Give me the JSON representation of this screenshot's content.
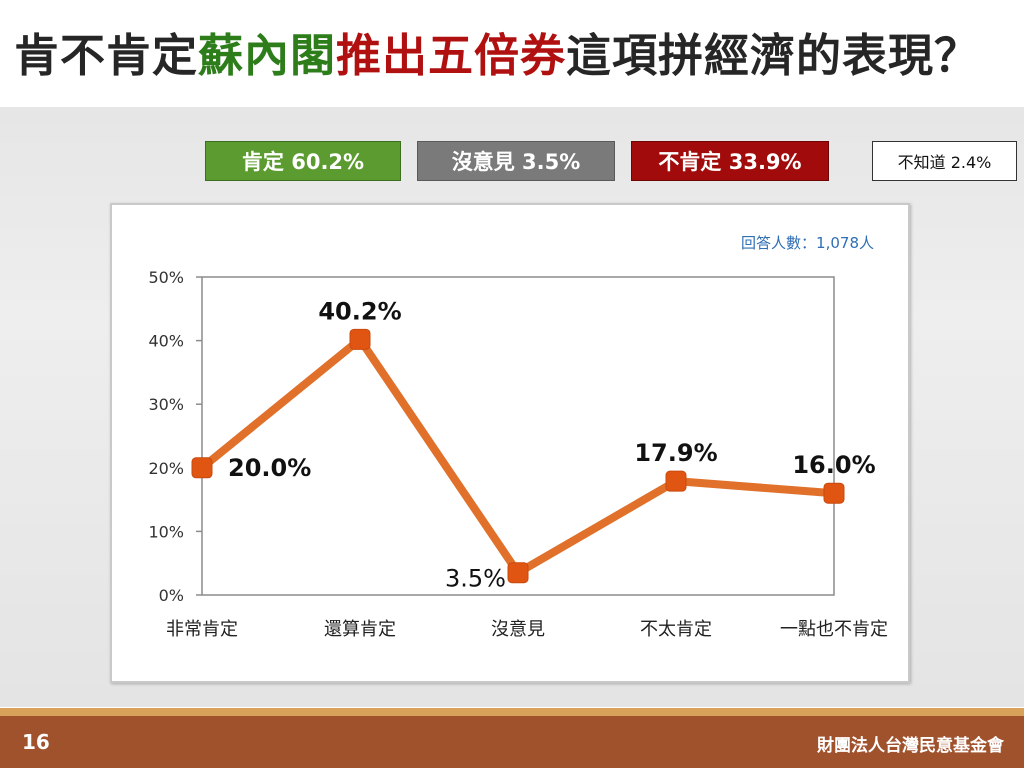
{
  "slide": {
    "title_parts": [
      {
        "text": "肯不肯定",
        "color": "#262626"
      },
      {
        "text": "蘇內閣",
        "color": "#2e7d1b"
      },
      {
        "text": "推出五倍券",
        "color": "#b01010"
      },
      {
        "text": "這項拼經濟的表現？",
        "color": "#262626"
      }
    ],
    "page_number": "16",
    "organization": "財團法人台灣民意基金會"
  },
  "summary": {
    "positive": "肯定 60.2%",
    "no_opinion": "沒意見 3.5%",
    "negative": "不肯定 33.9%",
    "dont_know": "不知道 2.4%"
  },
  "chart_data": {
    "type": "line",
    "annotation": "回答人數：1,078人",
    "categories": [
      "非常肯定",
      "還算肯定",
      "沒意見",
      "不太肯定",
      "一點也不肯定"
    ],
    "values": [
      20.0,
      40.2,
      3.5,
      17.9,
      16.0
    ],
    "data_labels": [
      "20.0%",
      "40.2%",
      "3.5%",
      "17.9%",
      "16.0%"
    ],
    "yticks": [
      "0%",
      "10%",
      "20%",
      "30%",
      "40%",
      "50%"
    ],
    "ylim": [
      0,
      50
    ],
    "grid": false,
    "line_color": "#e0702a",
    "marker_color": "#e05512"
  }
}
